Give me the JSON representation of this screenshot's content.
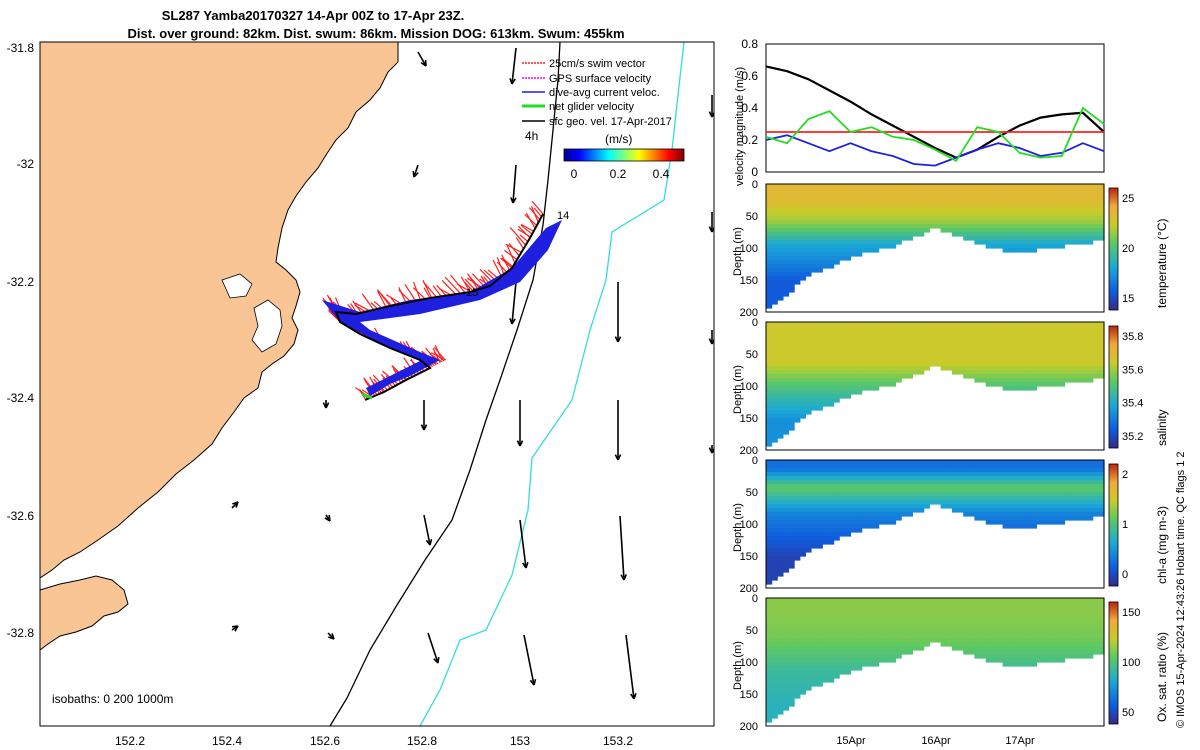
{
  "figure": {
    "title_line1": "SL287 Yamba20170327 14-Apr 00Z to 17-Apr 23Z.",
    "title_line2": "Dist. over ground: 82km. Dist. swum: 86km. Mission DOG: 613km. Swum: 455km",
    "credit": "© IMOS 15-Apr-2024 12:43:26 Hobart time. QC flags 1  2"
  },
  "map": {
    "xticks": [
      "152.2",
      "152.4",
      "152.6",
      "152.8",
      "153",
      "153.2"
    ],
    "yticks": [
      "-31.8",
      "-32",
      "-32.2",
      "-32.4",
      "-32.6",
      "-32.8"
    ],
    "isobaths_label": "isobaths: 0   200  1000m",
    "time_label": "4h",
    "units_label": "(m/s)",
    "colorbar_ticks": [
      "0",
      "0.2",
      "0.4"
    ],
    "track_labels": [
      "14",
      "15"
    ],
    "legend": [
      {
        "label": "25cm/s swim vector",
        "color": "#ff2020"
      },
      {
        "label": "GPS surface velocity",
        "color": "#ff00ff"
      },
      {
        "label": "dive-avg current veloc.",
        "color": "#1f1fe0"
      },
      {
        "label": "net glider velocity",
        "color": "#22dd22"
      },
      {
        "label": "sfc geo. vel. 17-Apr-2017",
        "color": "#000000"
      }
    ],
    "colors": {
      "land": "#f9c595",
      "isobath_200": "#000000",
      "isobath_1000": "#33dddd"
    }
  },
  "panels": {
    "velocity": {
      "ylabel": "velocity magnitude (m/s)",
      "yticks": [
        "0",
        "0.2",
        "0.4",
        "0.6",
        "0.8"
      ]
    },
    "temperature": {
      "ylabel": "Depth (m)",
      "cblabel": "temperature (°C)",
      "yticks": [
        "0",
        "50",
        "100",
        "150",
        "200"
      ],
      "cbticks": [
        "25",
        "20",
        "15"
      ]
    },
    "salinity": {
      "ylabel": "Depth (m)",
      "cblabel": "salinity",
      "yticks": [
        "0",
        "50",
        "100",
        "150",
        "200"
      ],
      "cbticks": [
        "35.8",
        "35.6",
        "35.4",
        "35.2"
      ]
    },
    "chla": {
      "ylabel": "Depth (m)",
      "cblabel": "chl-a (mg m-3)",
      "yticks": [
        "0",
        "50",
        "100",
        "150",
        "200"
      ],
      "cbticks": [
        "2",
        "1",
        "0"
      ]
    },
    "oxygen": {
      "ylabel": "Depth (m)",
      "cblabel": "Ox. sat. ratio (%)",
      "yticks": [
        "0",
        "50",
        "100",
        "150",
        "200"
      ],
      "cbticks": [
        "150",
        "100",
        "50"
      ]
    },
    "time_ticks": [
      "15Apr",
      "16Apr",
      "17Apr"
    ]
  },
  "chart_data": [
    {
      "type": "line",
      "xlabel": "",
      "ylabel": "velocity magnitude (m/s)",
      "ylim": [
        0,
        0.8
      ],
      "x": [
        0,
        0.25,
        0.5,
        0.75,
        1.0,
        1.25,
        1.5,
        1.75,
        2.0,
        2.25,
        2.5,
        2.75,
        3.0,
        3.25,
        3.5,
        3.75,
        4.0
      ],
      "series": [
        {
          "color": "#000000",
          "values": [
            0.66,
            0.63,
            0.58,
            0.51,
            0.44,
            0.36,
            0.29,
            0.22,
            0.15,
            0.09,
            0.14,
            0.22,
            0.29,
            0.34,
            0.36,
            0.37,
            0.25
          ]
        },
        {
          "color": "#ff2020",
          "values": [
            0.25,
            0.25,
            0.25,
            0.25,
            0.25,
            0.25,
            0.25,
            0.25,
            0.25,
            0.25,
            0.25,
            0.25,
            0.25,
            0.25,
            0.25,
            0.25,
            0.25
          ]
        },
        {
          "color": "#1f1fe0",
          "values": [
            0.2,
            0.23,
            0.18,
            0.13,
            0.18,
            0.13,
            0.1,
            0.05,
            0.04,
            0.09,
            0.14,
            0.18,
            0.15,
            0.1,
            0.12,
            0.18,
            0.13
          ]
        },
        {
          "color": "#22dd22",
          "values": [
            0.22,
            0.18,
            0.33,
            0.38,
            0.25,
            0.28,
            0.22,
            0.2,
            0.14,
            0.07,
            0.28,
            0.25,
            0.12,
            0.09,
            0.1,
            0.4,
            0.3
          ]
        }
      ]
    },
    {
      "type": "heatmap",
      "ylabel": "Depth (m)",
      "colorbar_label": "temperature (°C)",
      "ylim": [
        0,
        200
      ],
      "clim": [
        13,
        27
      ],
      "x": [
        0,
        0.5,
        1.0,
        1.5,
        2.0,
        2.5,
        3.0,
        3.5,
        4.0
      ],
      "max_depth": [
        190,
        140,
        110,
        95,
        65,
        90,
        105,
        95,
        85
      ],
      "layers": [
        {
          "depth": 20,
          "value": 24
        },
        {
          "depth": 55,
          "value": 22
        },
        {
          "depth": 90,
          "value": 18
        },
        {
          "depth": 150,
          "value": 15
        }
      ]
    },
    {
      "type": "heatmap",
      "ylabel": "Depth (m)",
      "colorbar_label": "salinity",
      "ylim": [
        0,
        200
      ],
      "clim": [
        35.1,
        35.8
      ],
      "x": [
        0,
        0.5,
        1.0,
        1.5,
        2.0,
        2.5,
        3.0,
        3.5,
        4.0
      ],
      "max_depth": [
        190,
        140,
        110,
        95,
        65,
        90,
        105,
        95,
        85
      ],
      "layers": [
        {
          "depth": 20,
          "value": 35.6
        },
        {
          "depth": 60,
          "value": 35.6
        },
        {
          "depth": 100,
          "value": 35.45
        },
        {
          "depth": 150,
          "value": 35.3
        }
      ]
    },
    {
      "type": "heatmap",
      "ylabel": "Depth (m)",
      "colorbar_label": "chl-a (mg m-3)",
      "ylim": [
        0,
        200
      ],
      "clim": [
        0,
        2
      ],
      "x": [
        0,
        0.5,
        1.0,
        1.5,
        2.0,
        2.5,
        3.0,
        3.5,
        4.0
      ],
      "max_depth": [
        190,
        140,
        110,
        95,
        65,
        90,
        105,
        95,
        85
      ],
      "layers": [
        {
          "depth": 10,
          "value": 0.4
        },
        {
          "depth": 40,
          "value": 1.1
        },
        {
          "depth": 80,
          "value": 0.5
        },
        {
          "depth": 150,
          "value": 0.15
        }
      ]
    },
    {
      "type": "heatmap",
      "ylabel": "Depth (m)",
      "colorbar_label": "Ox. sat. ratio (%)",
      "ylim": [
        0,
        200
      ],
      "clim": [
        20,
        175
      ],
      "x": [
        0,
        0.5,
        1.0,
        1.5,
        2.0,
        2.5,
        3.0,
        3.5,
        4.0
      ],
      "max_depth": [
        190,
        140,
        110,
        95,
        65,
        90,
        105,
        95,
        85
      ],
      "layers": [
        {
          "depth": 20,
          "value": 115
        },
        {
          "depth": 60,
          "value": 110
        },
        {
          "depth": 110,
          "value": 90
        },
        {
          "depth": 160,
          "value": 82
        }
      ]
    }
  ]
}
